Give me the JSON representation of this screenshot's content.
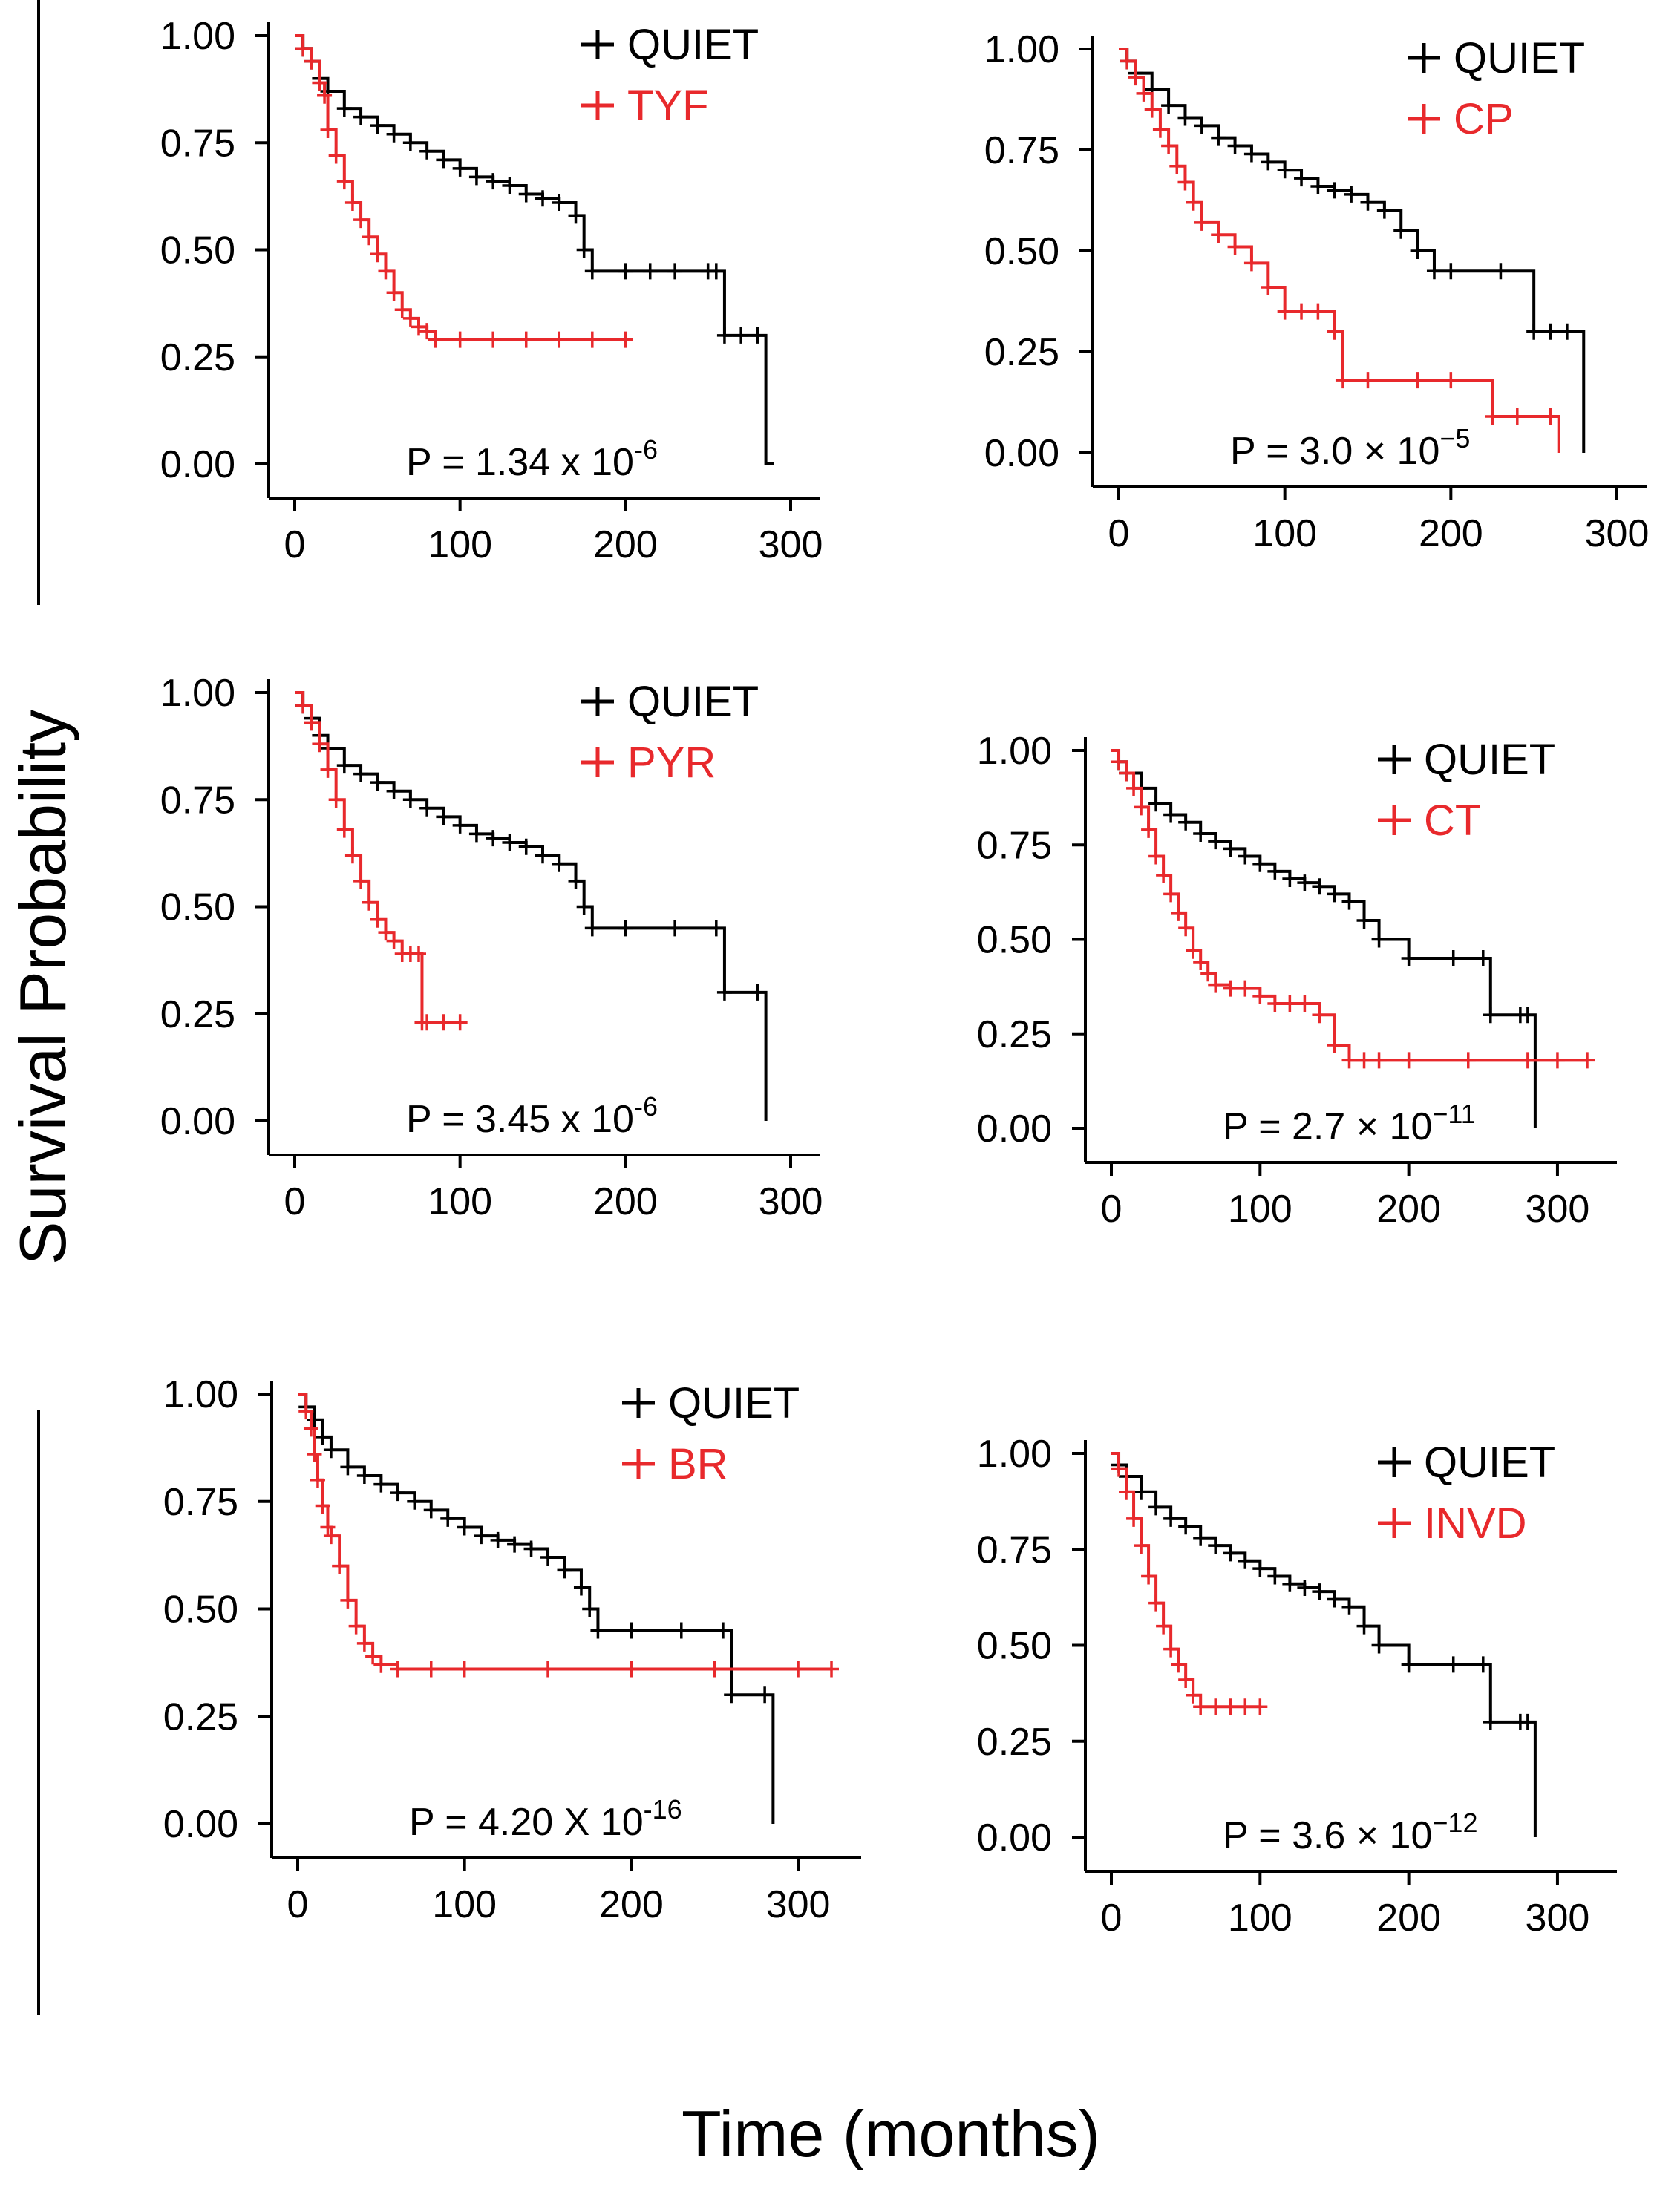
{
  "figure": {
    "ylabel": "Survival Probability",
    "xlabel": "Time (months)"
  },
  "chart_data": [
    {
      "type": "line",
      "xlim": [
        0,
        300
      ],
      "ylim": [
        0,
        1
      ],
      "xticks": [
        "0",
        "100",
        "200",
        "300"
      ],
      "yticks": [
        "0.00",
        "0.25",
        "0.50",
        "0.75",
        "1.00"
      ],
      "legend_position": "top-right",
      "p_value": {
        "base": "P = 1.34 x 10",
        "exp": "-6"
      },
      "series": [
        {
          "name": "QUIET",
          "color": "#000000",
          "x": [
            0,
            5,
            10,
            15,
            20,
            30,
            40,
            50,
            60,
            70,
            80,
            90,
            100,
            110,
            120,
            130,
            140,
            150,
            160,
            170,
            175,
            180,
            200,
            215,
            230,
            250,
            255,
            260,
            270,
            280,
            285,
            290
          ],
          "y": [
            1.0,
            0.97,
            0.94,
            0.9,
            0.87,
            0.83,
            0.81,
            0.79,
            0.77,
            0.75,
            0.73,
            0.71,
            0.69,
            0.67,
            0.66,
            0.65,
            0.63,
            0.62,
            0.61,
            0.58,
            0.5,
            0.45,
            0.45,
            0.45,
            0.45,
            0.45,
            0.45,
            0.3,
            0.3,
            0.3,
            0.0,
            0.0
          ]
        },
        {
          "name": "TYF",
          "color": "#e8292c",
          "x": [
            0,
            5,
            10,
            15,
            18,
            20,
            25,
            30,
            35,
            40,
            45,
            50,
            55,
            60,
            65,
            70,
            75,
            80,
            85,
            100,
            120,
            140,
            160,
            180,
            200
          ],
          "y": [
            1.0,
            0.97,
            0.94,
            0.89,
            0.86,
            0.78,
            0.72,
            0.66,
            0.61,
            0.57,
            0.53,
            0.49,
            0.45,
            0.4,
            0.36,
            0.34,
            0.32,
            0.31,
            0.29,
            0.29,
            0.29,
            0.29,
            0.29,
            0.29,
            0.29
          ]
        }
      ]
    },
    {
      "type": "line",
      "xlim": [
        0,
        300
      ],
      "ylim": [
        0,
        1
      ],
      "xticks": [
        "0",
        "100",
        "200",
        "300"
      ],
      "yticks": [
        "0.00",
        "0.25",
        "0.50",
        "0.75",
        "1.00"
      ],
      "legend_position": "top-right",
      "p_value": {
        "base": "P = 3.0 × 10",
        "exp": "−5"
      },
      "series": [
        {
          "name": "QUIET",
          "color": "#000000",
          "x": [
            0,
            5,
            10,
            20,
            30,
            40,
            50,
            60,
            70,
            80,
            90,
            100,
            110,
            120,
            130,
            140,
            150,
            160,
            170,
            180,
            190,
            200,
            230,
            250,
            260,
            270,
            280
          ],
          "y": [
            1.0,
            0.97,
            0.94,
            0.9,
            0.86,
            0.83,
            0.81,
            0.78,
            0.76,
            0.74,
            0.72,
            0.7,
            0.68,
            0.66,
            0.65,
            0.64,
            0.62,
            0.6,
            0.55,
            0.5,
            0.45,
            0.45,
            0.45,
            0.3,
            0.3,
            0.3,
            0.0
          ]
        },
        {
          "name": "CP",
          "color": "#e8292c",
          "x": [
            0,
            5,
            10,
            15,
            20,
            25,
            30,
            35,
            40,
            45,
            50,
            60,
            70,
            80,
            90,
            100,
            110,
            120,
            130,
            135,
            150,
            180,
            200,
            225,
            240,
            260,
            265
          ],
          "y": [
            1.0,
            0.97,
            0.93,
            0.89,
            0.85,
            0.8,
            0.76,
            0.71,
            0.67,
            0.62,
            0.57,
            0.54,
            0.51,
            0.47,
            0.41,
            0.35,
            0.35,
            0.35,
            0.3,
            0.18,
            0.18,
            0.18,
            0.18,
            0.09,
            0.09,
            0.09,
            0.0
          ]
        }
      ]
    },
    {
      "type": "line",
      "xlim": [
        0,
        300
      ],
      "ylim": [
        0,
        1
      ],
      "xticks": [
        "0",
        "100",
        "200",
        "300"
      ],
      "yticks": [
        "0.00",
        "0.25",
        "0.50",
        "0.75",
        "1.00"
      ],
      "legend_position": "top-right",
      "p_value": {
        "base": "P = 3.45 x 10",
        "exp": "-6"
      },
      "series": [
        {
          "name": "QUIET",
          "color": "#000000",
          "x": [
            0,
            5,
            10,
            15,
            20,
            30,
            40,
            50,
            60,
            70,
            80,
            90,
            100,
            110,
            120,
            130,
            140,
            150,
            160,
            170,
            175,
            180,
            200,
            230,
            255,
            260,
            280,
            285
          ],
          "y": [
            1.0,
            0.97,
            0.94,
            0.9,
            0.87,
            0.83,
            0.81,
            0.79,
            0.77,
            0.75,
            0.73,
            0.71,
            0.69,
            0.67,
            0.66,
            0.65,
            0.64,
            0.62,
            0.6,
            0.56,
            0.5,
            0.45,
            0.45,
            0.45,
            0.45,
            0.3,
            0.3,
            0.0
          ]
        },
        {
          "name": "PYR",
          "color": "#e8292c",
          "x": [
            0,
            5,
            10,
            15,
            20,
            25,
            30,
            35,
            40,
            45,
            50,
            55,
            60,
            65,
            70,
            75,
            77,
            80,
            90,
            100
          ],
          "y": [
            1.0,
            0.97,
            0.93,
            0.88,
            0.82,
            0.75,
            0.68,
            0.62,
            0.56,
            0.51,
            0.47,
            0.44,
            0.42,
            0.39,
            0.39,
            0.39,
            0.23,
            0.23,
            0.23,
            0.23
          ]
        }
      ]
    },
    {
      "type": "line",
      "xlim": [
        0,
        320
      ],
      "ylim": [
        0,
        1
      ],
      "xticks": [
        "0",
        "100",
        "200",
        "300"
      ],
      "yticks": [
        "0.00",
        "0.25",
        "0.50",
        "0.75",
        "1.00"
      ],
      "legend_position": "top-right",
      "p_value": {
        "base": "P = 2.7 × 10",
        "exp": "−11"
      },
      "series": [
        {
          "name": "QUIET",
          "color": "#000000",
          "x": [
            0,
            5,
            10,
            20,
            30,
            40,
            50,
            60,
            70,
            80,
            90,
            100,
            110,
            120,
            130,
            140,
            150,
            160,
            170,
            180,
            200,
            230,
            250,
            255,
            275,
            280,
            285
          ],
          "y": [
            1.0,
            0.97,
            0.94,
            0.9,
            0.86,
            0.83,
            0.81,
            0.78,
            0.76,
            0.74,
            0.72,
            0.7,
            0.68,
            0.66,
            0.65,
            0.64,
            0.62,
            0.6,
            0.55,
            0.5,
            0.45,
            0.45,
            0.45,
            0.3,
            0.3,
            0.3,
            0.0
          ]
        },
        {
          "name": "CT",
          "color": "#e8292c",
          "x": [
            0,
            5,
            10,
            15,
            20,
            25,
            30,
            35,
            40,
            45,
            50,
            55,
            60,
            65,
            70,
            80,
            90,
            100,
            110,
            120,
            130,
            140,
            150,
            160,
            170,
            180,
            200,
            240,
            280,
            300,
            320
          ],
          "y": [
            1.0,
            0.97,
            0.94,
            0.9,
            0.85,
            0.79,
            0.72,
            0.67,
            0.62,
            0.57,
            0.53,
            0.47,
            0.44,
            0.41,
            0.38,
            0.37,
            0.37,
            0.35,
            0.33,
            0.33,
            0.33,
            0.3,
            0.22,
            0.18,
            0.18,
            0.18,
            0.18,
            0.18,
            0.18,
            0.18,
            0.18
          ]
        }
      ]
    },
    {
      "type": "line",
      "xlim": [
        0,
        320
      ],
      "ylim": [
        0,
        1
      ],
      "xticks": [
        "0",
        "100",
        "200",
        "300"
      ],
      "yticks": [
        "0.00",
        "0.25",
        "0.50",
        "0.75",
        "1.00"
      ],
      "legend_position": "top-right",
      "p_value": {
        "base": "P = 4.20 X 10",
        "exp": "-16"
      },
      "series": [
        {
          "name": "QUIET",
          "color": "#000000",
          "x": [
            0,
            5,
            10,
            15,
            20,
            30,
            40,
            50,
            60,
            70,
            80,
            90,
            100,
            110,
            120,
            130,
            140,
            150,
            160,
            170,
            175,
            180,
            200,
            230,
            255,
            260,
            280,
            285
          ],
          "y": [
            1.0,
            0.97,
            0.94,
            0.9,
            0.87,
            0.83,
            0.81,
            0.79,
            0.77,
            0.75,
            0.73,
            0.71,
            0.69,
            0.67,
            0.66,
            0.65,
            0.64,
            0.62,
            0.59,
            0.55,
            0.5,
            0.45,
            0.45,
            0.45,
            0.45,
            0.3,
            0.3,
            0.0
          ]
        },
        {
          "name": "BR",
          "color": "#e8292c",
          "x": [
            0,
            5,
            8,
            10,
            12,
            15,
            18,
            20,
            25,
            30,
            35,
            40,
            45,
            50,
            60,
            80,
            100,
            150,
            200,
            250,
            300,
            320
          ],
          "y": [
            1.0,
            0.96,
            0.92,
            0.86,
            0.8,
            0.74,
            0.69,
            0.67,
            0.6,
            0.52,
            0.46,
            0.42,
            0.39,
            0.37,
            0.36,
            0.36,
            0.36,
            0.36,
            0.36,
            0.36,
            0.36,
            0.36
          ]
        }
      ]
    },
    {
      "type": "line",
      "xlim": [
        0,
        320
      ],
      "ylim": [
        0,
        1
      ],
      "xticks": [
        "0",
        "100",
        "200",
        "300"
      ],
      "yticks": [
        "0.00",
        "0.25",
        "0.50",
        "0.75",
        "1.00"
      ],
      "legend_position": "top-right",
      "p_value": {
        "base": "P = 3.6 × 10",
        "exp": "−12"
      },
      "series": [
        {
          "name": "QUIET",
          "color": "#000000",
          "x": [
            0,
            5,
            10,
            20,
            30,
            40,
            50,
            60,
            70,
            80,
            90,
            100,
            110,
            120,
            130,
            140,
            150,
            160,
            170,
            180,
            200,
            230,
            250,
            255,
            275,
            280,
            285
          ],
          "y": [
            1.0,
            0.97,
            0.94,
            0.9,
            0.86,
            0.83,
            0.81,
            0.78,
            0.76,
            0.74,
            0.72,
            0.7,
            0.68,
            0.66,
            0.65,
            0.64,
            0.62,
            0.6,
            0.55,
            0.5,
            0.45,
            0.45,
            0.45,
            0.3,
            0.3,
            0.3,
            0.0
          ]
        },
        {
          "name": "INVD",
          "color": "#e8292c",
          "x": [
            0,
            5,
            10,
            15,
            20,
            25,
            30,
            35,
            40,
            45,
            50,
            55,
            60,
            70,
            80,
            90,
            100
          ],
          "y": [
            1.0,
            0.96,
            0.9,
            0.83,
            0.76,
            0.68,
            0.61,
            0.55,
            0.49,
            0.45,
            0.41,
            0.37,
            0.34,
            0.34,
            0.34,
            0.34,
            0.34
          ]
        }
      ]
    }
  ]
}
